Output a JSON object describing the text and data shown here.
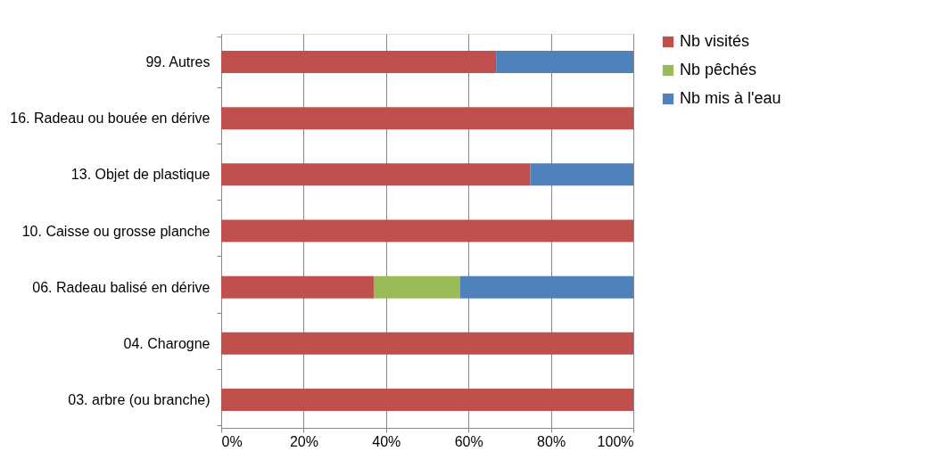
{
  "chart_data": {
    "type": "bar",
    "orientation": "horizontal",
    "stacked": true,
    "categories": [
      "99. Autres",
      "16. Radeau ou bouée en dérive",
      "13. Objet de plastique",
      "10. Caisse ou grosse planche",
      "06. Radeau balisé en dérive",
      "04. Charogne",
      "03. arbre (ou branche)"
    ],
    "series": [
      {
        "name": "Nb visités",
        "color": "#c0504d",
        "values": [
          66.7,
          100,
          75,
          100,
          37,
          100,
          100
        ]
      },
      {
        "name": "Nb pêchés",
        "color": "#9bbb59",
        "values": [
          0,
          0,
          0,
          0,
          21,
          0,
          0
        ]
      },
      {
        "name": "Nb mis à l'eau",
        "color": "#4f81bd",
        "values": [
          33.3,
          0,
          25,
          0,
          42,
          0,
          0
        ]
      }
    ],
    "xlim": [
      0,
      100
    ],
    "xticks": [
      {
        "value": 0,
        "label": "0%"
      },
      {
        "value": 20,
        "label": "20%"
      },
      {
        "value": 40,
        "label": "40%"
      },
      {
        "value": 60,
        "label": "60%"
      },
      {
        "value": 80,
        "label": "80%"
      },
      {
        "value": 100,
        "label": "100%"
      }
    ],
    "grid": "x",
    "legend": "right"
  }
}
